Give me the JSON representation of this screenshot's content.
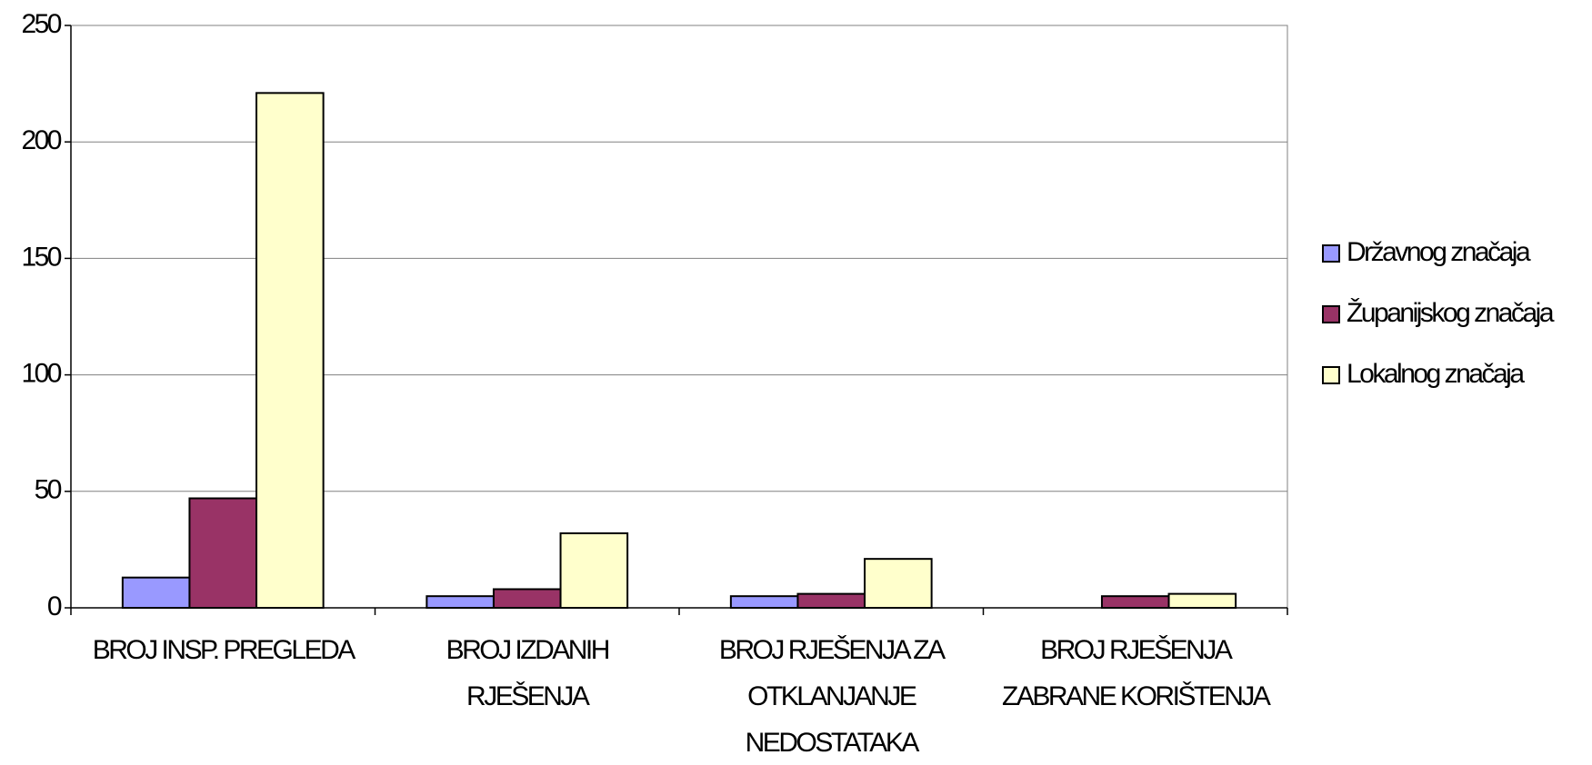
{
  "chart_data": {
    "type": "bar",
    "categories": [
      "BROJ INSP. PREGLEDA",
      "BROJ IZDANIH RJEŠENJA",
      "BROJ RJEŠENJA ZA OTKLANJANJE NEDOSTATAKA",
      "BROJ RJEŠENJA ZABRANE KORIŠTENJA"
    ],
    "series": [
      {
        "name": "Državnog značaja",
        "color": "#9999ff",
        "values": [
          13,
          5,
          5,
          0
        ]
      },
      {
        "name": "Županijskog značaja",
        "color": "#993366",
        "values": [
          47,
          8,
          6,
          5
        ]
      },
      {
        "name": "Lokalnog značaja",
        "color": "#ffffcc",
        "values": [
          221,
          32,
          21,
          6
        ]
      }
    ],
    "ylim": [
      0,
      250
    ],
    "yticks": [
      0,
      50,
      100,
      150,
      200,
      250
    ],
    "grid": true,
    "legend": "right"
  }
}
